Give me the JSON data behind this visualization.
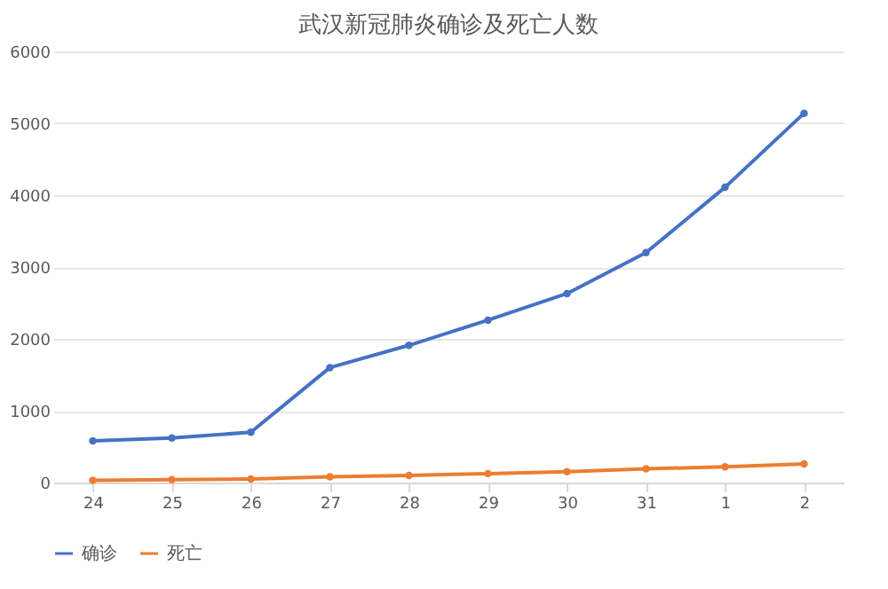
{
  "chart_data": {
    "type": "line",
    "title": "武汉新冠肺炎确诊及死亡人数",
    "categories": [
      "24",
      "25",
      "26",
      "27",
      "28",
      "29",
      "30",
      "31",
      "1",
      "2"
    ],
    "series": [
      {
        "name": "确诊",
        "color": "#4472c4",
        "values": [
          580,
          620,
          700,
          1600,
          1910,
          2260,
          2630,
          3200,
          4110,
          5140
        ]
      },
      {
        "name": "死亡",
        "color": "#ed7d31",
        "values": [
          30,
          40,
          50,
          80,
          100,
          125,
          150,
          190,
          220,
          260
        ]
      }
    ],
    "ylim": [
      0,
      6000
    ],
    "yticks": [
      0,
      1000,
      2000,
      3000,
      4000,
      5000,
      6000
    ],
    "grid": "y",
    "legend": "bottom",
    "marker": "circle",
    "line_style": "solid"
  }
}
